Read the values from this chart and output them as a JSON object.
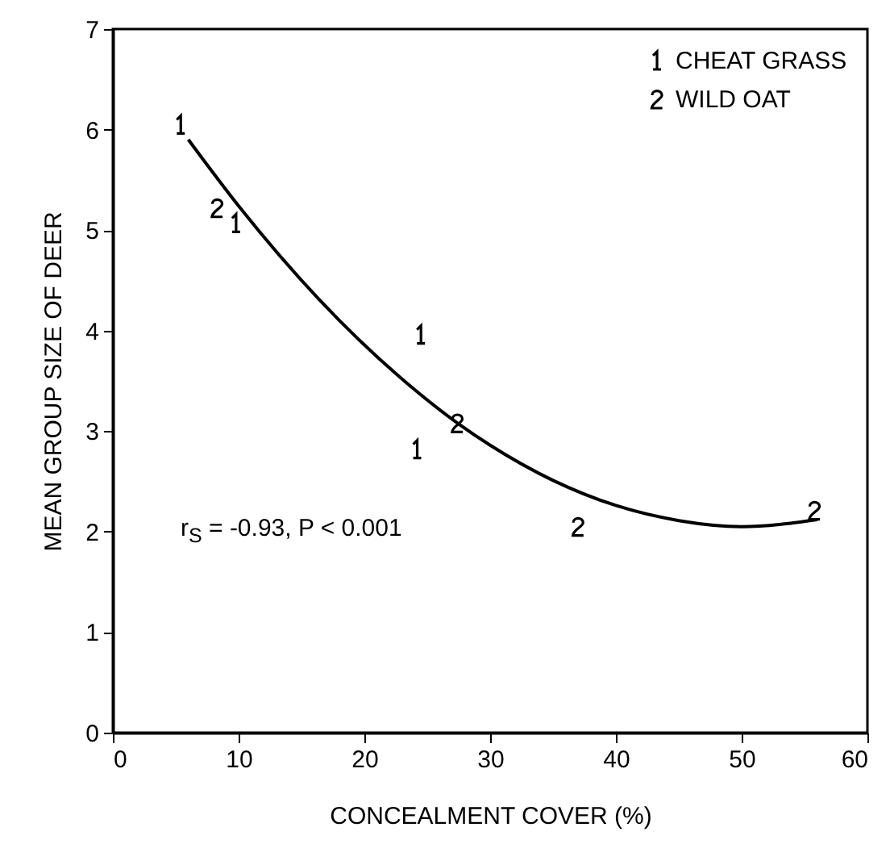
{
  "chart_data": {
    "type": "scatter",
    "xlabel": "CONCEALMENT COVER (%)",
    "ylabel": "MEAN GROUP SIZE OF DEER",
    "xlim": [
      0,
      60
    ],
    "ylim": [
      0,
      7
    ],
    "xticks": [
      0,
      10,
      20,
      30,
      40,
      50,
      60
    ],
    "yticks": [
      0,
      1,
      2,
      3,
      4,
      5,
      6,
      7
    ],
    "legend": "top right",
    "annotations": [
      "r$_{S}$ = -0.93, P < 0.001"
    ],
    "series": [
      {
        "name": "CHEAT GRASS",
        "color": "#000000",
        "x": [
          5.4,
          9.8,
          24.5,
          24.2
        ],
        "values": [
          6.05,
          5.07,
          3.96,
          2.82
        ]
      },
      {
        "name": "WILD OAT",
        "color": "#000000",
        "x": [
          8.3,
          27.4,
          37.0,
          55.8
        ],
        "values": [
          5.22,
          3.08,
          2.05,
          2.21
        ]
      },
      {
        "type": "line",
        "color": "#000000",
        "x": [
          6,
          10,
          16.4,
          22.7,
          27.4,
          30,
          35,
          40,
          45,
          50,
          56
        ],
        "values": [
          5.9,
          5.24,
          4.31,
          3.55,
          3.08,
          2.86,
          2.51,
          2.26,
          2.11,
          2.05,
          2.12
        ]
      }
    ]
  }
}
